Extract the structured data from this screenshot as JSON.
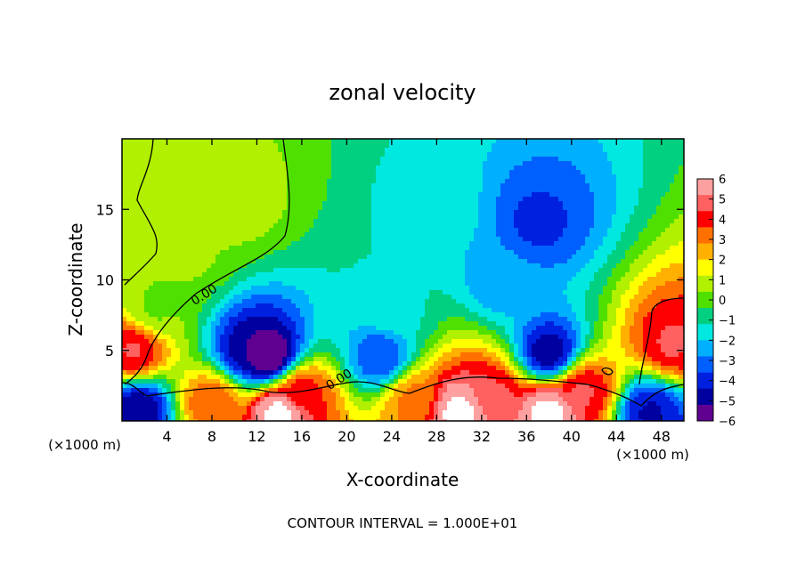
{
  "chart_data": {
    "type": "heatmap",
    "title": "zonal velocity",
    "xlabel": "X-coordinate",
    "ylabel": "Z-coordinate",
    "x_unit_left": "(×1000 m)",
    "x_unit_right": "(×1000 m)",
    "footer": "CONTOUR INTERVAL = 1.000E+01",
    "xlim": [
      0,
      50
    ],
    "ylim": [
      0,
      20
    ],
    "x_ticks": [
      {
        "value": 4,
        "label": "4"
      },
      {
        "value": 8,
        "label": "8"
      },
      {
        "value": 12,
        "label": "12"
      },
      {
        "value": 16,
        "label": "16"
      },
      {
        "value": 20,
        "label": "20"
      },
      {
        "value": 24,
        "label": "24"
      },
      {
        "value": 28,
        "label": "28"
      },
      {
        "value": 32,
        "label": "32"
      },
      {
        "value": 36,
        "label": "36"
      },
      {
        "value": 40,
        "label": "40"
      },
      {
        "value": 44,
        "label": "44"
      },
      {
        "value": 48,
        "label": "48"
      }
    ],
    "y_ticks": [
      {
        "value": 5,
        "label": "5"
      },
      {
        "value": 10,
        "label": "10"
      },
      {
        "value": 15,
        "label": "15"
      }
    ],
    "contour_labels": [
      {
        "x": 7.5,
        "y": 8.7,
        "label": "0.00"
      },
      {
        "x": 19.5,
        "y": 2.7,
        "label": "0.00"
      }
    ],
    "colorbar": {
      "min": -6,
      "max": 6,
      "labels": [
        "6",
        "5",
        "4",
        "3",
        "2",
        "1",
        "0",
        "−1",
        "−2",
        "−3",
        "−4",
        "−5",
        "−6"
      ],
      "colors": [
        "#ffa0a0",
        "#ff6060",
        "#ff0000",
        "#ff7000",
        "#ffb000",
        "#ffff00",
        "#b0f000",
        "#50e000",
        "#00d080",
        "#00e8e0",
        "#00b0ff",
        "#0060ff",
        "#0020e0",
        "#0000a0",
        "#600090"
      ]
    },
    "features": [
      {
        "x": 10,
        "y": 15.5,
        "value": 0.8
      },
      {
        "x": 6,
        "y": 12,
        "value": 0.5
      },
      {
        "x": 3,
        "y": 8,
        "value": 0.3
      },
      {
        "x": 37,
        "y": 14,
        "value": -3.8
      },
      {
        "x": 34,
        "y": 10,
        "value": -2.6
      },
      {
        "x": 28,
        "y": 15,
        "value": -1.6
      },
      {
        "x": 24,
        "y": 8,
        "value": -1.4
      },
      {
        "x": 11.5,
        "y": 5,
        "value": -5.2
      },
      {
        "x": 13,
        "y": 4.6,
        "value": -6.5
      },
      {
        "x": 23,
        "y": 4.5,
        "value": -3.6
      },
      {
        "x": 38,
        "y": 4.8,
        "value": -5.0
      },
      {
        "x": 1,
        "y": 5,
        "value": 4.5
      },
      {
        "x": 49,
        "y": 5.5,
        "value": 4.5
      },
      {
        "x": 16,
        "y": 2,
        "value": 4.0
      },
      {
        "x": 33,
        "y": 1.8,
        "value": 4.5
      },
      {
        "x": 41,
        "y": 2.1,
        "value": 4.5
      },
      {
        "x": 26,
        "y": 1.5,
        "value": 3.0
      },
      {
        "x": 8,
        "y": 1.3,
        "value": 3.5
      },
      {
        "x": 14,
        "y": 0.6,
        "value": 7.0
      },
      {
        "x": 30,
        "y": 0.7,
        "value": 7.0
      },
      {
        "x": 38,
        "y": 0.6,
        "value": 7.0
      },
      {
        "x": 1.5,
        "y": 0.8,
        "value": -5.0
      },
      {
        "x": 47,
        "y": 0.6,
        "value": -4.5
      }
    ]
  }
}
